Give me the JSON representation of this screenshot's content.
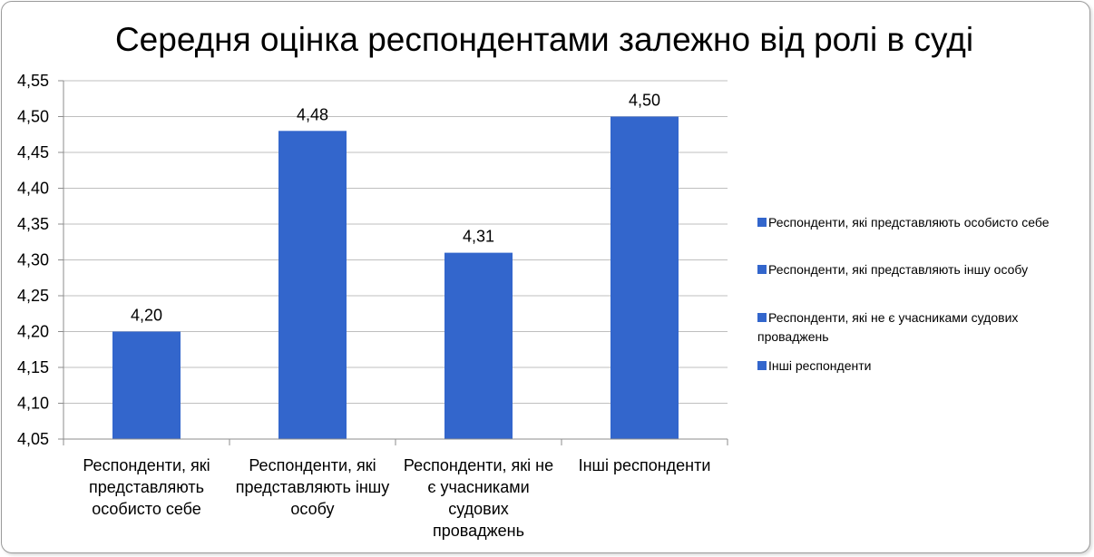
{
  "chart_data": {
    "type": "bar",
    "title": "Середня оцінка респондентами залежно від ролі в суді",
    "categories": [
      "Респонденти, які представляють особисто себе",
      "Респонденти, які представляють іншу особу",
      "Респонденти, які не є учасниками судових проваджень",
      "Інші респонденти"
    ],
    "category_lines": [
      [
        "Респонденти, які",
        "представляють",
        "особисто себе"
      ],
      [
        "Респонденти, які",
        "представляють іншу",
        "особу"
      ],
      [
        "Респонденти, які не",
        "є учасниками",
        "судових",
        "проваджень"
      ],
      [
        "Інші респонденти"
      ]
    ],
    "values": [
      4.2,
      4.48,
      4.31,
      4.5
    ],
    "data_labels": [
      "4,20",
      "4,48",
      "4,31",
      "4,50"
    ],
    "ylim": [
      4.05,
      4.55
    ],
    "yticks": [
      "4,05",
      "4,10",
      "4,15",
      "4,20",
      "4,25",
      "4,30",
      "4,35",
      "4,40",
      "4,45",
      "4,50",
      "4,55"
    ],
    "grid": true,
    "legend_position": "right",
    "legend": [
      {
        "lines": [
          "Респонденти, які представляють особисто себе"
        ]
      },
      {
        "lines": [
          "Респонденти, які представляють іншу особу"
        ]
      },
      {
        "lines": [
          "Респонденти, які не є учасниками судових",
          "проваджень"
        ]
      },
      {
        "lines": [
          "Інші респонденти"
        ]
      }
    ],
    "bar_color": "#3366cc",
    "grid_color": "#bfbfbf",
    "xlabel": "",
    "ylabel": ""
  }
}
